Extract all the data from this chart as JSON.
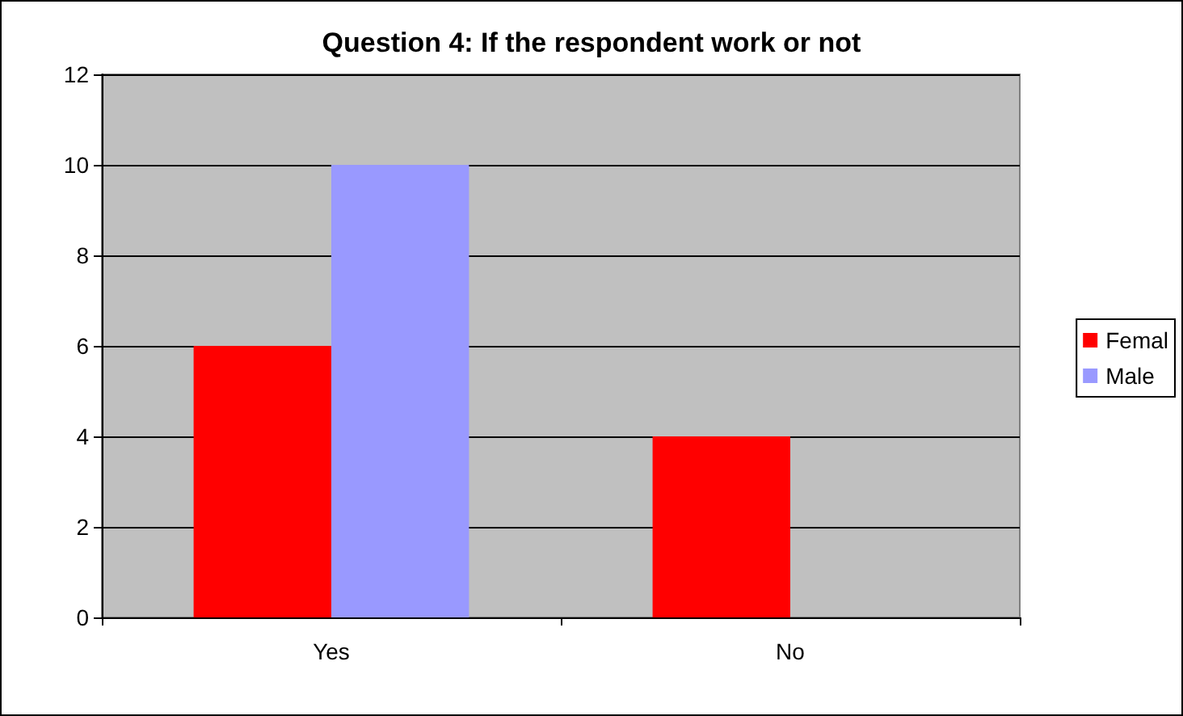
{
  "chart_data": {
    "type": "bar",
    "title": "Question 4: If the respondent work or not",
    "categories": [
      "Yes",
      "No"
    ],
    "series": [
      {
        "name": "Femal",
        "color": "#ff0000",
        "values": [
          6,
          4
        ]
      },
      {
        "name": "Male",
        "color": "#9999ff",
        "values": [
          10,
          0
        ]
      }
    ],
    "ylim": [
      0,
      12
    ],
    "yticks": [
      0,
      2,
      4,
      6,
      8,
      10,
      12
    ],
    "grid": "y",
    "legend": "right"
  }
}
